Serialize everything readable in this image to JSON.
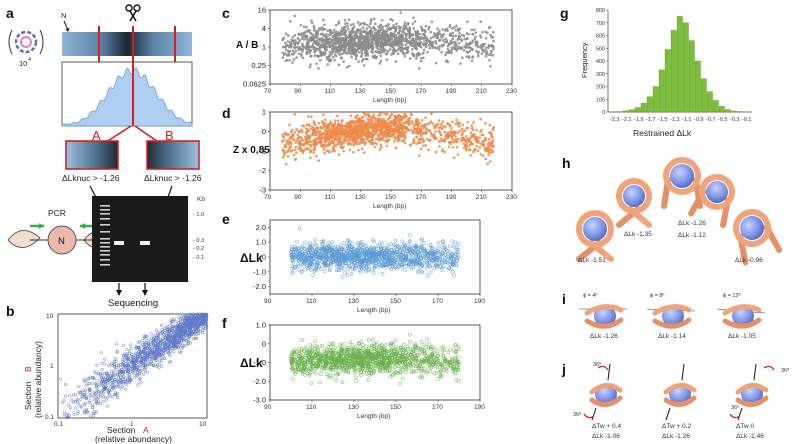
{
  "panel_labels": {
    "a": "a",
    "b": "b",
    "c": "c",
    "d": "d",
    "e": "e",
    "f": "f",
    "g": "g",
    "h": "h",
    "i": "i",
    "j": "j"
  },
  "colors": {
    "c": "#8c8c8c",
    "d": "#f08a4b",
    "e": "#5b9bd5",
    "f": "#6ab04c",
    "g": "#7cbd3a",
    "b": "#5f79c8",
    "accent_red": "#d62020",
    "nucleosome": "#7f95e6",
    "dna": "#f0a47a"
  },
  "panel_a": {
    "circle_count": "10",
    "circle_count_exp": "4",
    "n_label": "N",
    "section_a": "A",
    "section_b": "B",
    "dlk_a": "ΔLknuc > -1.26",
    "dlk_b": "ΔLknuc > -1.26",
    "pcr": "PCR",
    "n_node": "N",
    "kb_label": "Kb",
    "ladder_marks": [
      "- 1.0",
      "- 0.3",
      "- 0.2",
      "- 0.1"
    ],
    "sequencing": "Sequencing"
  },
  "panel_b": {
    "ylabel_section": "Section",
    "ylabel_letter": "B",
    "ylabel_sub": "(relative abundancy)",
    "xlabel_section": "Section",
    "xlabel_letter": "A",
    "xlabel_sub": "(relative abundancy)",
    "ticks_x": [
      "0.1",
      "1",
      "10"
    ],
    "ticks_y": [
      "10",
      "1",
      "0.1"
    ]
  },
  "chart_data": [
    {
      "id": "c",
      "type": "scatter",
      "ylabel": "A / B",
      "xlabel": "Length  (bp)",
      "x_ticks": [
        "70",
        "90",
        "110",
        "130",
        "150",
        "170",
        "190",
        "210",
        "230"
      ],
      "y_ticks": [
        "16",
        "4",
        "1",
        "0.25",
        "0.0625"
      ],
      "xlim": [
        70,
        230
      ],
      "ylim_log2": [
        -4,
        4
      ]
    },
    {
      "id": "d",
      "type": "scatter",
      "ylabel": "Z x 0,85",
      "xlabel": "Length  (bp)",
      "x_ticks": [
        "70",
        "90",
        "110",
        "130",
        "150",
        "170",
        "190",
        "210",
        "230"
      ],
      "y_ticks": [
        "1",
        "0",
        "-1",
        "-2",
        "-3"
      ],
      "xlim": [
        70,
        230
      ],
      "ylim": [
        -3,
        1
      ]
    },
    {
      "id": "e",
      "type": "scatter",
      "ylabel": "ΔLk",
      "xlabel": "Length  (bp)",
      "x_ticks": [
        "90",
        "110",
        "130",
        "150",
        "170",
        "190"
      ],
      "y_ticks": [
        "2.0",
        "1.0",
        "0",
        "-1.0",
        "-2.0"
      ],
      "xlim": [
        90,
        190
      ],
      "ylim": [
        -2.5,
        2.5
      ]
    },
    {
      "id": "f",
      "type": "scatter",
      "ylabel": "ΔLk",
      "xlabel": "Length  (bp)",
      "x_ticks": [
        "90",
        "110",
        "130",
        "150",
        "170",
        "190"
      ],
      "y_ticks": [
        "1.0",
        "0",
        "-1.0",
        "-2.0",
        "-3.0"
      ],
      "xlim": [
        90,
        190
      ],
      "ylim": [
        -3,
        1
      ]
    },
    {
      "id": "g",
      "type": "histogram",
      "ylabel": "Frequency",
      "xlabel": "Restrained   ΔLk",
      "x_ticks": [
        "-2.3",
        "-2.1",
        "-1.9",
        "-1.7",
        "-1.5",
        "-1.3",
        "-1.1",
        "-0.9",
        "-0.7",
        "-0.5",
        "-0.3",
        "-0.1"
      ],
      "y_ticks": [
        "0",
        "100",
        "200",
        "300",
        "400",
        "500",
        "600",
        "700",
        "800"
      ],
      "ylim": [
        0,
        800
      ],
      "bins_x": [
        -2.3,
        -2.2,
        -2.1,
        -2.0,
        -1.9,
        -1.8,
        -1.7,
        -1.6,
        -1.5,
        -1.4,
        -1.3,
        -1.2,
        -1.1,
        -1.0,
        -0.9,
        -0.8,
        -0.7,
        -0.6,
        -0.5,
        -0.4,
        -0.3,
        -0.2,
        -0.1
      ],
      "values": [
        2,
        4,
        10,
        18,
        35,
        70,
        120,
        200,
        330,
        490,
        640,
        750,
        700,
        560,
        400,
        260,
        160,
        90,
        45,
        20,
        8,
        4,
        2
      ]
    }
  ],
  "panel_h": {
    "labels": [
      "ΔLk  -1.51",
      "ΔLk  -1.35",
      "ΔLk  -1.26",
      "ΔLk  -1.12",
      "ΔLk  -0.96"
    ]
  },
  "panel_i": {
    "angles": [
      "ϕ = 4º",
      "ϕ = 8º",
      "ϕ = 12º"
    ],
    "labels": [
      "ΔLk  -1.26",
      "ΔLk  -1.14",
      "ΔLk  -1.05"
    ]
  },
  "panel_j": {
    "angle": "36º",
    "tw": [
      "ΔTw + 0.4",
      "ΔTw + 0.2",
      "ΔTw  0"
    ],
    "lk": [
      "ΔLk  -1.06",
      "ΔLk  -1.26",
      "ΔLk  -1.46"
    ]
  }
}
